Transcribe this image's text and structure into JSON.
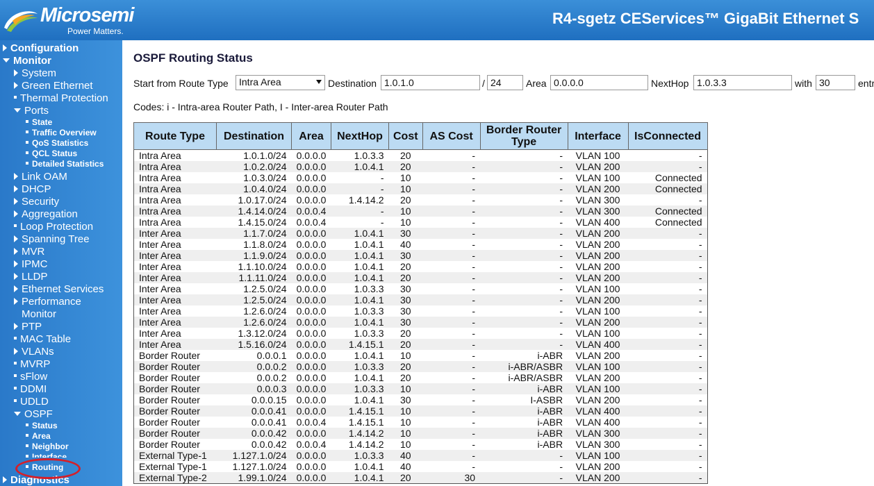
{
  "header": {
    "logo_text": "Microsemi",
    "logo_tagline": "Power Matters.",
    "title": "R4-sgetz CEServices™ GigaBit Ethernet S"
  },
  "sidebar": {
    "configuration": "Configuration",
    "monitor": "Monitor",
    "system": "System",
    "green_ethernet": "Green Ethernet",
    "thermal_protection": "Thermal Protection",
    "ports": "Ports",
    "ports_state": "State",
    "ports_traffic_overview": "Traffic Overview",
    "ports_qos_statistics": "QoS Statistics",
    "ports_qcl_status": "QCL Status",
    "ports_detailed_statistics": "Detailed Statistics",
    "link_oam": "Link OAM",
    "dhcp": "DHCP",
    "security": "Security",
    "aggregation": "Aggregation",
    "loop_protection": "Loop Protection",
    "spanning_tree": "Spanning Tree",
    "mvr": "MVR",
    "ipmc": "IPMC",
    "lldp": "LLDP",
    "ethernet_services": "Ethernet Services",
    "performance": "Performance",
    "performance_monitor": "Monitor",
    "ptp": "PTP",
    "mac_table": "MAC Table",
    "vlans": "VLANs",
    "mvrp": "MVRP",
    "sflow": "sFlow",
    "ddmi": "DDMI",
    "udld": "UDLD",
    "ospf": "OSPF",
    "ospf_status": "Status",
    "ospf_area": "Area",
    "ospf_neighbor": "Neighbor",
    "ospf_interface": "Interface",
    "ospf_routing": "Routing",
    "diagnostics": "Diagnostics"
  },
  "main": {
    "title": "OSPF Routing Status",
    "start_label": "Start from Route Type",
    "route_type_selected": "Intra Area",
    "destination_label": "Destination",
    "destination_value": "1.0.1.0",
    "slash": "/",
    "prefix_value": "24",
    "area_label": "Area",
    "area_value": "0.0.0.0",
    "nexthop_label": "NextHop",
    "nexthop_value": "1.0.3.3",
    "with_label": "with",
    "entries_value": "30",
    "entries_label": "entr",
    "codes": "Codes: i - Intra-area Router Path, I - Inter-area Router Path"
  },
  "table": {
    "headers": [
      "Route Type",
      "Destination",
      "Area",
      "NextHop",
      "Cost",
      "AS Cost",
      "Border Router Type",
      "Interface",
      "IsConnected"
    ],
    "rows": [
      [
        "Intra Area",
        "1.0.1.0/24",
        "0.0.0.0",
        "1.0.3.3",
        "20",
        "-",
        "-",
        "VLAN 100",
        "-"
      ],
      [
        "Intra Area",
        "1.0.2.0/24",
        "0.0.0.0",
        "1.0.4.1",
        "20",
        "-",
        "-",
        "VLAN 200",
        "-"
      ],
      [
        "Intra Area",
        "1.0.3.0/24",
        "0.0.0.0",
        "-",
        "10",
        "-",
        "-",
        "VLAN 100",
        "Connected"
      ],
      [
        "Intra Area",
        "1.0.4.0/24",
        "0.0.0.0",
        "-",
        "10",
        "-",
        "-",
        "VLAN 200",
        "Connected"
      ],
      [
        "Intra Area",
        "1.0.17.0/24",
        "0.0.0.0",
        "1.4.14.2",
        "20",
        "-",
        "-",
        "VLAN 300",
        "-"
      ],
      [
        "Intra Area",
        "1.4.14.0/24",
        "0.0.0.4",
        "-",
        "10",
        "-",
        "-",
        "VLAN 300",
        "Connected"
      ],
      [
        "Intra Area",
        "1.4.15.0/24",
        "0.0.0.4",
        "-",
        "10",
        "-",
        "-",
        "VLAN 400",
        "Connected"
      ],
      [
        "Inter Area",
        "1.1.7.0/24",
        "0.0.0.0",
        "1.0.4.1",
        "30",
        "-",
        "-",
        "VLAN 200",
        "-"
      ],
      [
        "Inter Area",
        "1.1.8.0/24",
        "0.0.0.0",
        "1.0.4.1",
        "40",
        "-",
        "-",
        "VLAN 200",
        "-"
      ],
      [
        "Inter Area",
        "1.1.9.0/24",
        "0.0.0.0",
        "1.0.4.1",
        "30",
        "-",
        "-",
        "VLAN 200",
        "-"
      ],
      [
        "Inter Area",
        "1.1.10.0/24",
        "0.0.0.0",
        "1.0.4.1",
        "20",
        "-",
        "-",
        "VLAN 200",
        "-"
      ],
      [
        "Inter Area",
        "1.1.11.0/24",
        "0.0.0.0",
        "1.0.4.1",
        "20",
        "-",
        "-",
        "VLAN 200",
        "-"
      ],
      [
        "Inter Area",
        "1.2.5.0/24",
        "0.0.0.0",
        "1.0.3.3",
        "30",
        "-",
        "-",
        "VLAN 100",
        "-"
      ],
      [
        "Inter Area",
        "1.2.5.0/24",
        "0.0.0.0",
        "1.0.4.1",
        "30",
        "-",
        "-",
        "VLAN 200",
        "-"
      ],
      [
        "Inter Area",
        "1.2.6.0/24",
        "0.0.0.0",
        "1.0.3.3",
        "30",
        "-",
        "-",
        "VLAN 100",
        "-"
      ],
      [
        "Inter Area",
        "1.2.6.0/24",
        "0.0.0.0",
        "1.0.4.1",
        "30",
        "-",
        "-",
        "VLAN 200",
        "-"
      ],
      [
        "Inter Area",
        "1.3.12.0/24",
        "0.0.0.0",
        "1.0.3.3",
        "20",
        "-",
        "-",
        "VLAN 100",
        "-"
      ],
      [
        "Inter Area",
        "1.5.16.0/24",
        "0.0.0.0",
        "1.4.15.1",
        "20",
        "-",
        "-",
        "VLAN 400",
        "-"
      ],
      [
        "Border Router",
        "0.0.0.1",
        "0.0.0.0",
        "1.0.4.1",
        "10",
        "-",
        "i-ABR",
        "VLAN 200",
        "-"
      ],
      [
        "Border Router",
        "0.0.0.2",
        "0.0.0.0",
        "1.0.3.3",
        "20",
        "-",
        "i-ABR/ASBR",
        "VLAN 100",
        "-"
      ],
      [
        "Border Router",
        "0.0.0.2",
        "0.0.0.0",
        "1.0.4.1",
        "20",
        "-",
        "i-ABR/ASBR",
        "VLAN 200",
        "-"
      ],
      [
        "Border Router",
        "0.0.0.3",
        "0.0.0.0",
        "1.0.3.3",
        "10",
        "-",
        "i-ABR",
        "VLAN 100",
        "-"
      ],
      [
        "Border Router",
        "0.0.0.15",
        "0.0.0.0",
        "1.0.4.1",
        "30",
        "-",
        "I-ASBR",
        "VLAN 200",
        "-"
      ],
      [
        "Border Router",
        "0.0.0.41",
        "0.0.0.0",
        "1.4.15.1",
        "10",
        "-",
        "i-ABR",
        "VLAN 400",
        "-"
      ],
      [
        "Border Router",
        "0.0.0.41",
        "0.0.0.4",
        "1.4.15.1",
        "10",
        "-",
        "i-ABR",
        "VLAN 400",
        "-"
      ],
      [
        "Border Router",
        "0.0.0.42",
        "0.0.0.0",
        "1.4.14.2",
        "10",
        "-",
        "i-ABR",
        "VLAN 300",
        "-"
      ],
      [
        "Border Router",
        "0.0.0.42",
        "0.0.0.4",
        "1.4.14.2",
        "10",
        "-",
        "i-ABR",
        "VLAN 300",
        "-"
      ],
      [
        "External Type-1",
        "1.127.1.0/24",
        "0.0.0.0",
        "1.0.3.3",
        "40",
        "-",
        "-",
        "VLAN 100",
        "-"
      ],
      [
        "External Type-1",
        "1.127.1.0/24",
        "0.0.0.0",
        "1.0.4.1",
        "40",
        "-",
        "-",
        "VLAN 200",
        "-"
      ],
      [
        "External Type-2",
        "1.99.1.0/24",
        "0.0.0.0",
        "1.0.4.1",
        "20",
        "30",
        "-",
        "VLAN 200",
        "-"
      ]
    ]
  },
  "colors": {
    "header_blue": "#2a7fd0",
    "sidebar_blue": "#2f82d0",
    "table_header": "#bcdbf3",
    "highlight_circle": "#d4202a"
  }
}
